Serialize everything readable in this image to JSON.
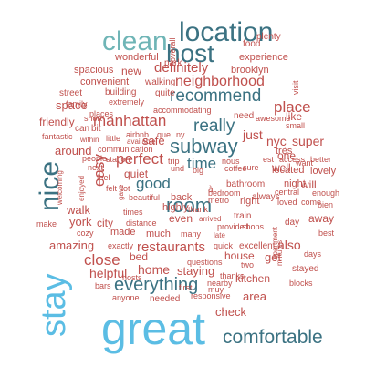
{
  "words": [
    {
      "text": "great",
      "color": "#5bbde4"
    },
    {
      "text": "stay",
      "color": "#5bbde4"
    },
    {
      "text": "location",
      "color": "#3b7282"
    },
    {
      "text": "host",
      "color": "#3b7282"
    },
    {
      "text": "clean",
      "color": "#6fb5b6"
    },
    {
      "text": "nice",
      "color": "#3b7282"
    },
    {
      "text": "room",
      "color": "#3b7282"
    },
    {
      "text": "comfortable",
      "color": "#3b7282"
    },
    {
      "text": "subway",
      "color": "#3b7282"
    },
    {
      "text": "recommend",
      "color": "#3b7282"
    },
    {
      "text": "everything",
      "color": "#3b7282"
    },
    {
      "text": "really",
      "color": "#3b7282"
    },
    {
      "text": "good",
      "color": "#3b7282"
    },
    {
      "text": "time",
      "color": "#3b7282"
    },
    {
      "text": "manhattan",
      "color": "#c0504d"
    },
    {
      "text": "neighborhood",
      "color": "#c0504d"
    },
    {
      "text": "definitely",
      "color": "#c0504d"
    },
    {
      "text": "perfect",
      "color": "#c0504d"
    },
    {
      "text": "restaurants",
      "color": "#c0504d"
    },
    {
      "text": "close",
      "color": "#c0504d"
    },
    {
      "text": "easy",
      "color": "#c0504d"
    },
    {
      "text": "place",
      "color": "#c0504d"
    },
    {
      "text": "helpful",
      "color": "#c0504d"
    },
    {
      "text": "home",
      "color": "#c0504d"
    },
    {
      "text": "staying",
      "color": "#c0504d"
    },
    {
      "text": "also",
      "color": "#c0504d"
    },
    {
      "text": "get",
      "color": "#c0504d"
    },
    {
      "text": "area",
      "color": "#c0504d"
    },
    {
      "text": "check",
      "color": "#c0504d"
    },
    {
      "text": "super",
      "color": "#c0504d"
    },
    {
      "text": "nyc",
      "color": "#c0504d"
    },
    {
      "text": "just",
      "color": "#c0504d"
    },
    {
      "text": "like",
      "color": "#c0504d"
    },
    {
      "text": "one",
      "color": "#c0504d"
    },
    {
      "text": "well",
      "color": "#c0504d"
    },
    {
      "text": "new",
      "color": "#c0504d"
    },
    {
      "text": "space",
      "color": "#c0504d"
    },
    {
      "text": "safe",
      "color": "#c0504d"
    },
    {
      "text": "around",
      "color": "#c0504d"
    },
    {
      "text": "friendly",
      "color": "#c0504d"
    },
    {
      "text": "walk",
      "color": "#c0504d"
    },
    {
      "text": "york",
      "color": "#c0504d"
    },
    {
      "text": "city",
      "color": "#c0504d"
    },
    {
      "text": "amazing",
      "color": "#c0504d"
    },
    {
      "text": "house",
      "color": "#c0504d"
    },
    {
      "text": "bed",
      "color": "#c0504d"
    },
    {
      "text": "made",
      "color": "#c0504d"
    },
    {
      "text": "much",
      "color": "#c0504d"
    },
    {
      "text": "even",
      "color": "#c0504d"
    },
    {
      "text": "highly",
      "color": "#c0504d"
    },
    {
      "text": "back",
      "color": "#c0504d"
    },
    {
      "text": "kitchen",
      "color": "#c0504d"
    },
    {
      "text": "located",
      "color": "#c0504d"
    },
    {
      "text": "lovely",
      "color": "#c0504d"
    },
    {
      "text": "away",
      "color": "#c0504d"
    },
    {
      "text": "will",
      "color": "#c0504d"
    },
    {
      "text": "night",
      "color": "#c0504d"
    },
    {
      "text": "quiet",
      "color": "#c0504d"
    },
    {
      "text": "brooklyn",
      "color": "#c0504d"
    },
    {
      "text": "experience",
      "color": "#c0504d"
    },
    {
      "text": "spacious",
      "color": "#c0504d"
    },
    {
      "text": "wonderful",
      "color": "#c0504d"
    },
    {
      "text": "convenient",
      "color": "#c0504d"
    },
    {
      "text": "walking",
      "color": "#c0504d"
    },
    {
      "text": "food",
      "color": "#c0504d"
    },
    {
      "text": "plenty",
      "color": "#c0504d"
    },
    {
      "text": "park",
      "color": "#c0504d"
    },
    {
      "text": "overall",
      "color": "#c0504d"
    },
    {
      "text": "street",
      "color": "#c0504d"
    },
    {
      "text": "building",
      "color": "#c0504d"
    },
    {
      "text": "quite",
      "color": "#c0504d"
    },
    {
      "text": "visit",
      "color": "#c0504d"
    },
    {
      "text": "family",
      "color": "#c0504d"
    },
    {
      "text": "extremely",
      "color": "#c0504d"
    },
    {
      "text": "accommodating",
      "color": "#c0504d"
    },
    {
      "text": "need",
      "color": "#c0504d"
    },
    {
      "text": "awesome",
      "color": "#c0504d"
    },
    {
      "text": "small",
      "color": "#c0504d"
    },
    {
      "text": "places",
      "color": "#c0504d"
    },
    {
      "text": "short",
      "color": "#c0504d"
    },
    {
      "text": "can",
      "color": "#c0504d"
    },
    {
      "text": "bit",
      "color": "#c0504d"
    },
    {
      "text": "airbnb",
      "color": "#c0504d"
    },
    {
      "text": "que",
      "color": "#c0504d"
    },
    {
      "text": "ny",
      "color": "#c0504d"
    },
    {
      "text": "fantastic",
      "color": "#c0504d"
    },
    {
      "text": "within",
      "color": "#c0504d"
    },
    {
      "text": "little",
      "color": "#c0504d"
    },
    {
      "text": "communication",
      "color": "#c0504d"
    },
    {
      "text": "available",
      "color": "#c0504d"
    },
    {
      "text": "station",
      "color": "#c0504d"
    },
    {
      "text": "next",
      "color": "#c0504d"
    },
    {
      "text": "trip",
      "color": "#c0504d"
    },
    {
      "text": "und",
      "color": "#c0504d"
    },
    {
      "text": "big",
      "color": "#c0504d"
    },
    {
      "text": "nous",
      "color": "#c0504d"
    },
    {
      "text": "coffee",
      "color": "#c0504d"
    },
    {
      "text": "sure",
      "color": "#c0504d"
    },
    {
      "text": "est",
      "color": "#c0504d"
    },
    {
      "text": "access",
      "color": "#c0504d"
    },
    {
      "text": "better",
      "color": "#c0504d"
    },
    {
      "text": "feel",
      "color": "#c0504d"
    },
    {
      "text": "people",
      "color": "#c0504d"
    },
    {
      "text": "felt",
      "color": "#c0504d"
    },
    {
      "text": "lot",
      "color": "#c0504d"
    },
    {
      "text": "welcoming",
      "color": "#c0504d"
    },
    {
      "text": "enjoyed",
      "color": "#c0504d"
    },
    {
      "text": "gave",
      "color": "#c0504d"
    },
    {
      "text": "beautiful",
      "color": "#c0504d"
    },
    {
      "text": "bedroom",
      "color": "#c0504d"
    },
    {
      "text": "bathroom",
      "color": "#c0504d"
    },
    {
      "text": "central",
      "color": "#c0504d"
    },
    {
      "text": "enough",
      "color": "#c0504d"
    },
    {
      "text": "cozy",
      "color": "#c0504d"
    },
    {
      "text": "always",
      "color": "#c0504d"
    },
    {
      "text": "times",
      "color": "#c0504d"
    },
    {
      "text": "distance",
      "color": "#c0504d"
    },
    {
      "text": "thank",
      "color": "#c0504d"
    },
    {
      "text": "train",
      "color": "#c0504d"
    },
    {
      "text": "loved",
      "color": "#c0504d"
    },
    {
      "text": "come",
      "color": "#c0504d"
    },
    {
      "text": "bien",
      "color": "#c0504d"
    },
    {
      "text": "make",
      "color": "#c0504d"
    },
    {
      "text": "arrived",
      "color": "#c0504d"
    },
    {
      "text": "many",
      "color": "#c0504d"
    },
    {
      "text": "day",
      "color": "#c0504d"
    },
    {
      "text": "best",
      "color": "#c0504d"
    },
    {
      "text": "exactly",
      "color": "#c0504d"
    },
    {
      "text": "quick",
      "color": "#c0504d"
    },
    {
      "text": "excellent",
      "color": "#c0504d"
    },
    {
      "text": "provided",
      "color": "#c0504d"
    },
    {
      "text": "shops",
      "color": "#c0504d"
    },
    {
      "text": "hosts",
      "color": "#c0504d"
    },
    {
      "text": "questions",
      "color": "#c0504d"
    },
    {
      "text": "two",
      "color": "#c0504d"
    },
    {
      "text": "days",
      "color": "#c0504d"
    },
    {
      "text": "stayed",
      "color": "#c0504d"
    },
    {
      "text": "bars",
      "color": "#c0504d"
    },
    {
      "text": "thanks",
      "color": "#c0504d"
    },
    {
      "text": "nearby",
      "color": "#c0504d"
    },
    {
      "text": "minutes",
      "color": "#c0504d"
    },
    {
      "text": "first",
      "color": "#c0504d"
    },
    {
      "text": "muy",
      "color": "#c0504d"
    },
    {
      "text": "blocks",
      "color": "#c0504d"
    },
    {
      "text": "anyone",
      "color": "#c0504d"
    },
    {
      "text": "needed",
      "color": "#c0504d"
    },
    {
      "text": "responsive",
      "color": "#c0504d"
    },
    {
      "text": "want",
      "color": "#c0504d"
    },
    {
      "text": "metro",
      "color": "#c0504d"
    },
    {
      "text": "right",
      "color": "#c0504d"
    },
    {
      "text": "apartment",
      "color": "#c0504d"
    },
    {
      "text": "très",
      "color": "#c0504d"
    },
    {
      "text": "late",
      "color": "#c0504d"
    },
    {
      "text": "à",
      "color": "#c0504d"
    }
  ]
}
